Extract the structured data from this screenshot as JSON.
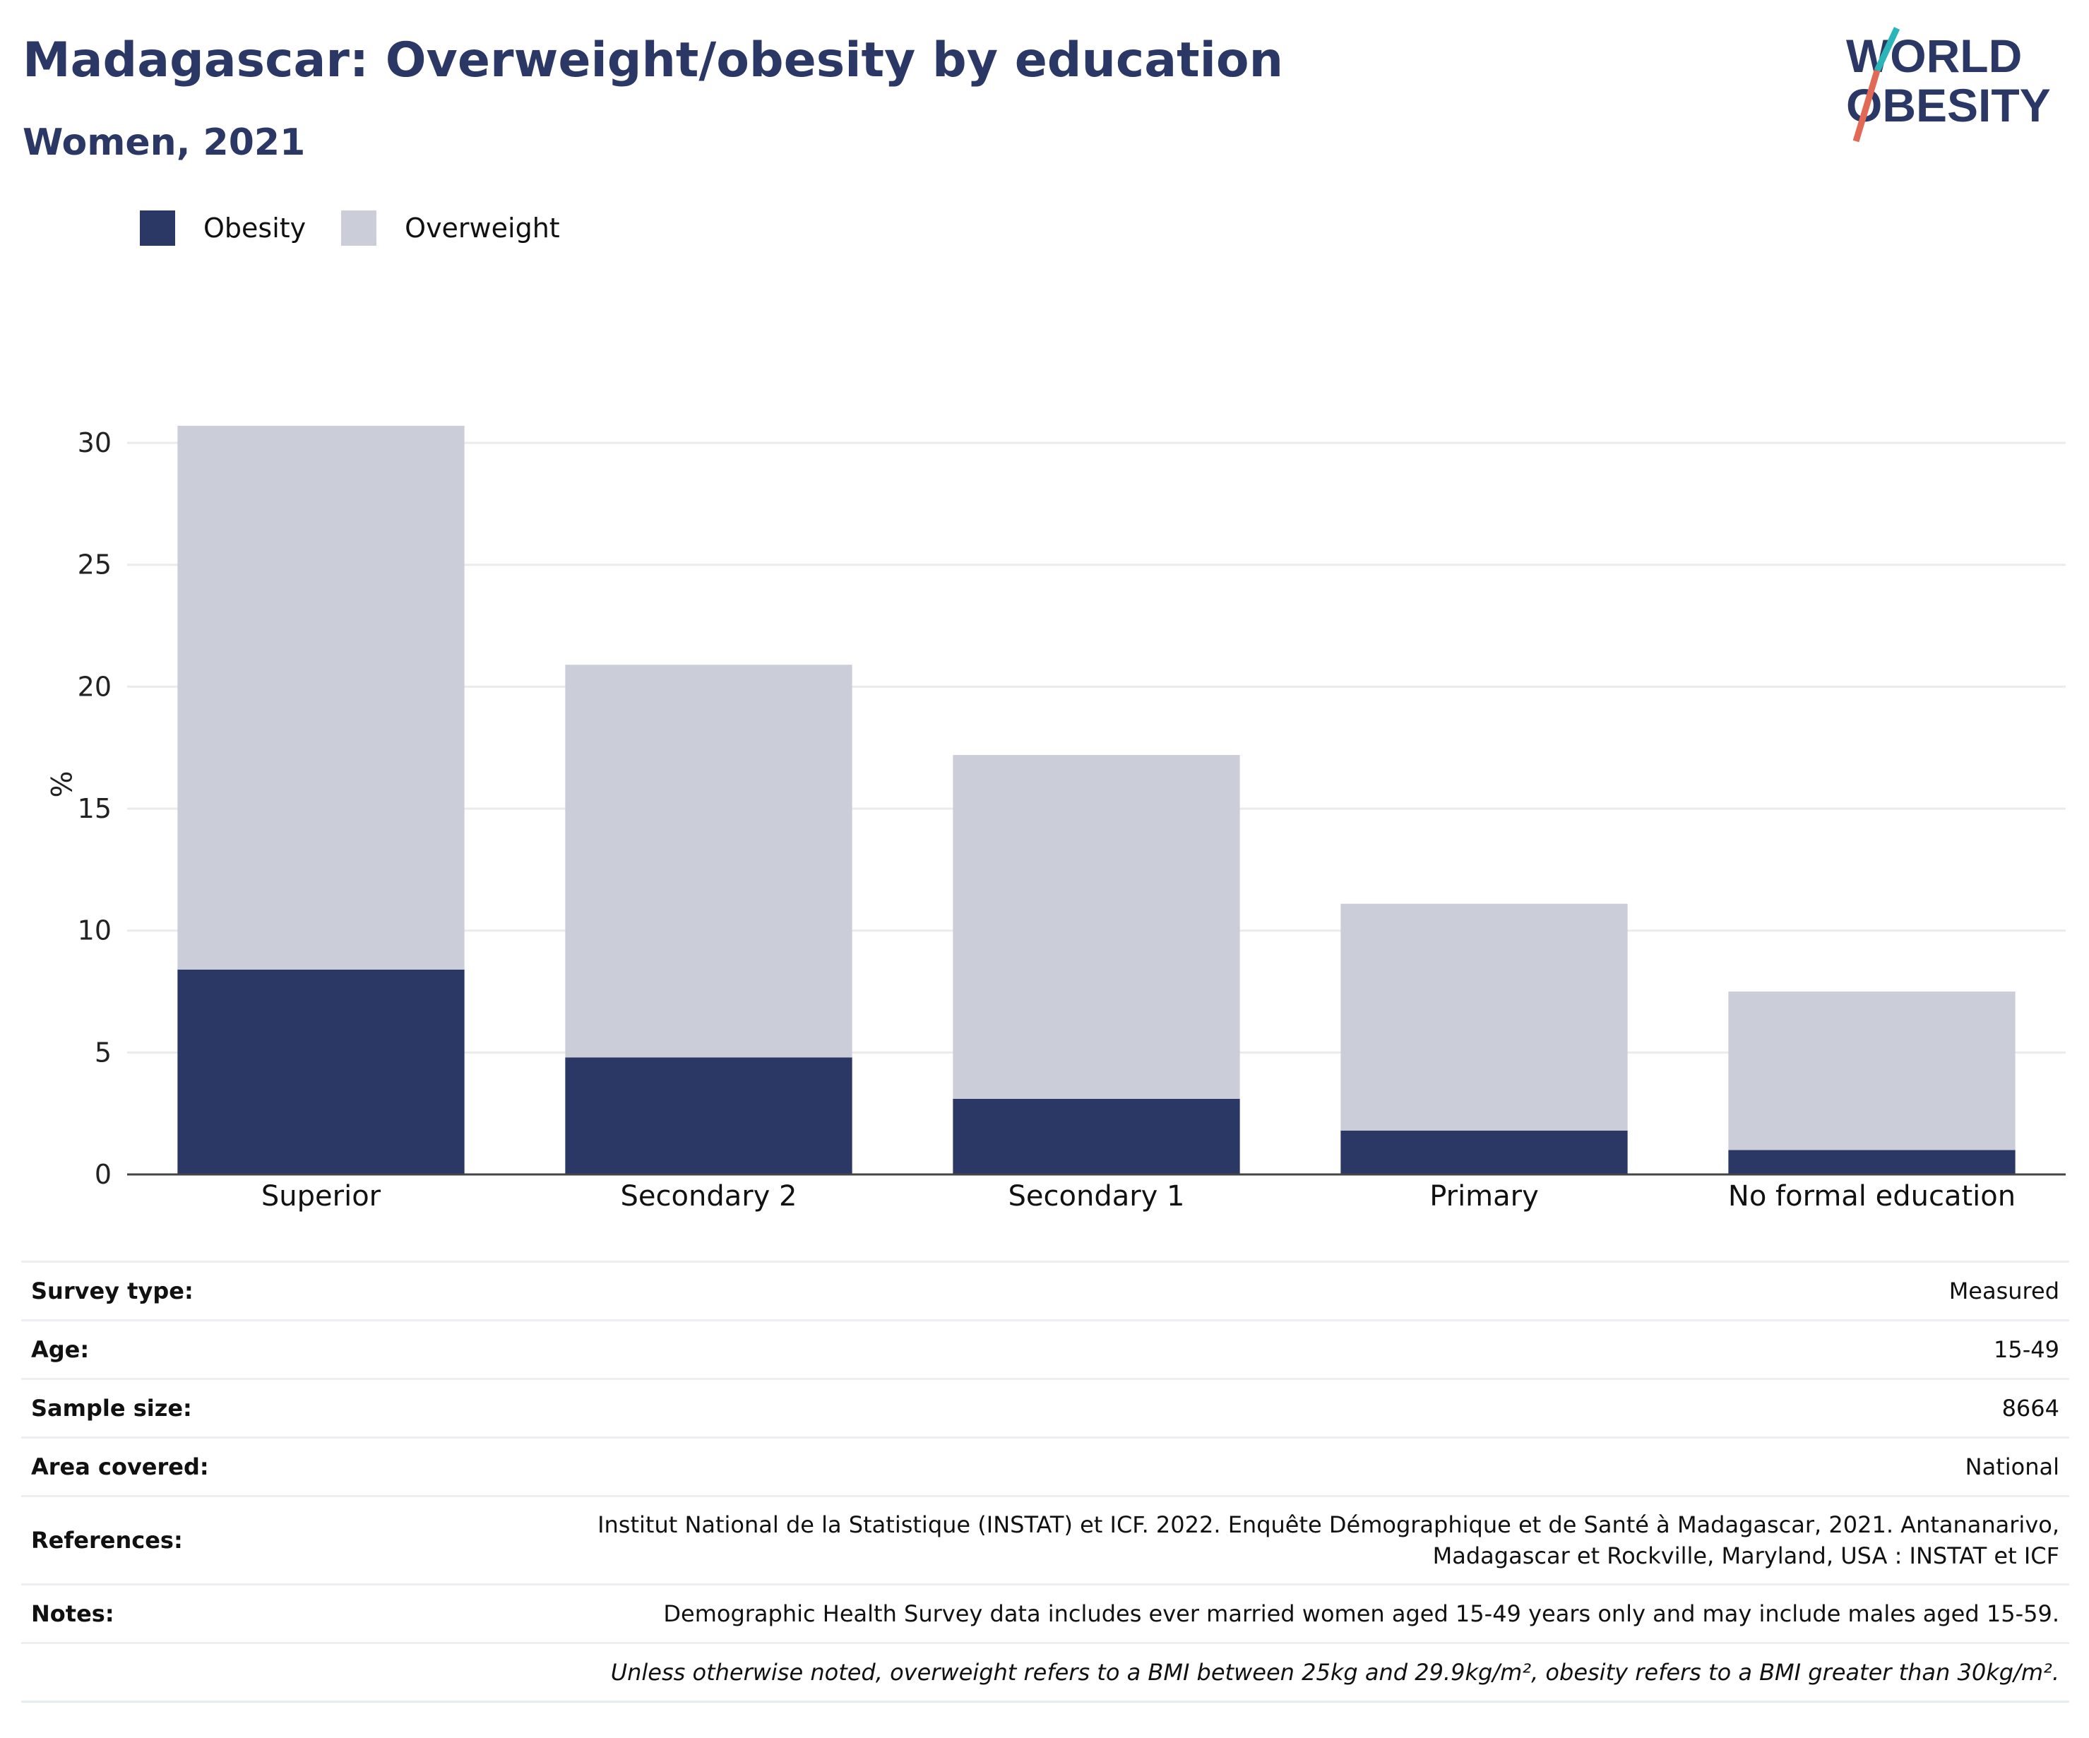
{
  "header": {
    "title": "Madagascar: Overweight/obesity by education",
    "subtitle": "Women, 2021"
  },
  "logo": {
    "line1": "WORLD",
    "line2": "OBESITY"
  },
  "colors": {
    "obesity": "#2b3764",
    "overweight": "#cbcdd8",
    "title": "#2b3764"
  },
  "legend": [
    {
      "label": "Obesity",
      "color": "#2b3764"
    },
    {
      "label": "Overweight",
      "color": "#cbcdd8"
    }
  ],
  "chart_data": {
    "type": "bar",
    "stacked": true,
    "categories": [
      "Superior",
      "Secondary 2",
      "Secondary 1",
      "Primary",
      "No formal education"
    ],
    "series": [
      {
        "name": "Obesity",
        "values": [
          8.4,
          4.8,
          3.1,
          1.8,
          1.0
        ]
      },
      {
        "name": "Overweight",
        "values": [
          22.3,
          16.1,
          14.1,
          9.3,
          6.5
        ]
      }
    ],
    "ylabel": "%",
    "ylim": [
      0,
      32
    ],
    "yticks": [
      0,
      5,
      10,
      15,
      20,
      25,
      30
    ],
    "grid": true
  },
  "info": [
    {
      "label": "Survey type:",
      "value": "Measured"
    },
    {
      "label": "Age:",
      "value": "15-49"
    },
    {
      "label": "Sample size:",
      "value": "8664"
    },
    {
      "label": "Area covered:",
      "value": "National"
    },
    {
      "label": "References:",
      "value": "Institut National de la Statistique (INSTAT) et ICF. 2022. Enquête Démographique et de Santé à Madagascar, 2021. Antananarivo, Madagascar et Rockville, Maryland, USA : INSTAT et ICF"
    },
    {
      "label": "Notes:",
      "value": "Demographic Health Survey data includes ever married women aged 15-49 years only and may include males aged 15-59."
    }
  ],
  "footnote": "Unless otherwise noted, overweight refers to a BMI between 25kg and 29.9kg/m², obesity refers to a BMI greater than 30kg/m²."
}
